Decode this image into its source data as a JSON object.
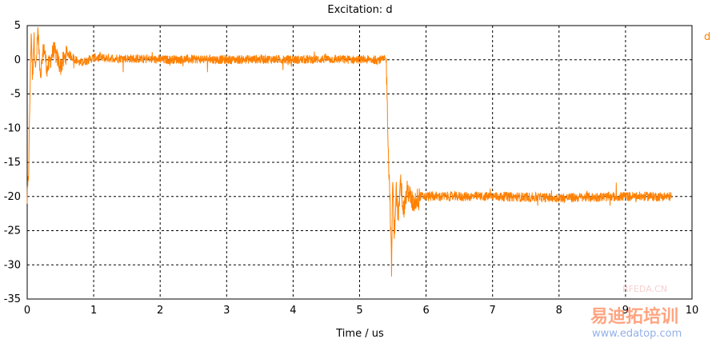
{
  "chart_data": {
    "type": "line",
    "title": "Excitation: d",
    "xlabel": "Time / us",
    "ylabel": "",
    "xlim": [
      0,
      10
    ],
    "ylim": [
      -35,
      5
    ],
    "x_ticks": [
      0,
      1,
      2,
      3,
      4,
      5,
      6,
      7,
      8,
      9,
      10
    ],
    "y_ticks": [
      5,
      0,
      -5,
      -10,
      -15,
      -20,
      -25,
      -30,
      -35
    ],
    "grid": true,
    "legend_position": "top-right",
    "series": [
      {
        "name": "d",
        "color": "#ff8000",
        "points": [
          [
            0.0,
            -20.5
          ],
          [
            0.02,
            -17
          ],
          [
            0.04,
            -6
          ],
          [
            0.06,
            4.5
          ],
          [
            0.08,
            -3
          ],
          [
            0.1,
            3.5
          ],
          [
            0.13,
            -1.5
          ],
          [
            0.16,
            4
          ],
          [
            0.2,
            -2
          ],
          [
            0.25,
            2
          ],
          [
            0.3,
            -1.5
          ],
          [
            0.4,
            1.5
          ],
          [
            0.5,
            -1
          ],
          [
            0.6,
            1
          ],
          [
            0.8,
            -0.5
          ],
          [
            1.0,
            0.3
          ],
          [
            1.5,
            0.2
          ],
          [
            2.0,
            0.0
          ],
          [
            2.5,
            0.1
          ],
          [
            3.0,
            0.0
          ],
          [
            3.5,
            0.1
          ],
          [
            4.0,
            0.0
          ],
          [
            4.5,
            0.1
          ],
          [
            5.0,
            0.0
          ],
          [
            5.35,
            0.0
          ],
          [
            5.4,
            0.1
          ],
          [
            5.42,
            -8
          ],
          [
            5.44,
            -16
          ],
          [
            5.46,
            -21
          ],
          [
            5.48,
            -30.5
          ],
          [
            5.5,
            -17
          ],
          [
            5.52,
            -26
          ],
          [
            5.55,
            -19
          ],
          [
            5.58,
            -23
          ],
          [
            5.62,
            -18
          ],
          [
            5.66,
            -22
          ],
          [
            5.72,
            -19
          ],
          [
            5.8,
            -21
          ],
          [
            5.9,
            -20
          ],
          [
            6.0,
            -20
          ],
          [
            7.0,
            -20
          ],
          [
            8.0,
            -20.2
          ],
          [
            9.0,
            -20
          ],
          [
            9.7,
            -20
          ]
        ]
      }
    ]
  },
  "watermark": {
    "text_1": "RFEDA.CN",
    "text_2": "易迪拓培训",
    "text_3": "www.edatop.com"
  }
}
